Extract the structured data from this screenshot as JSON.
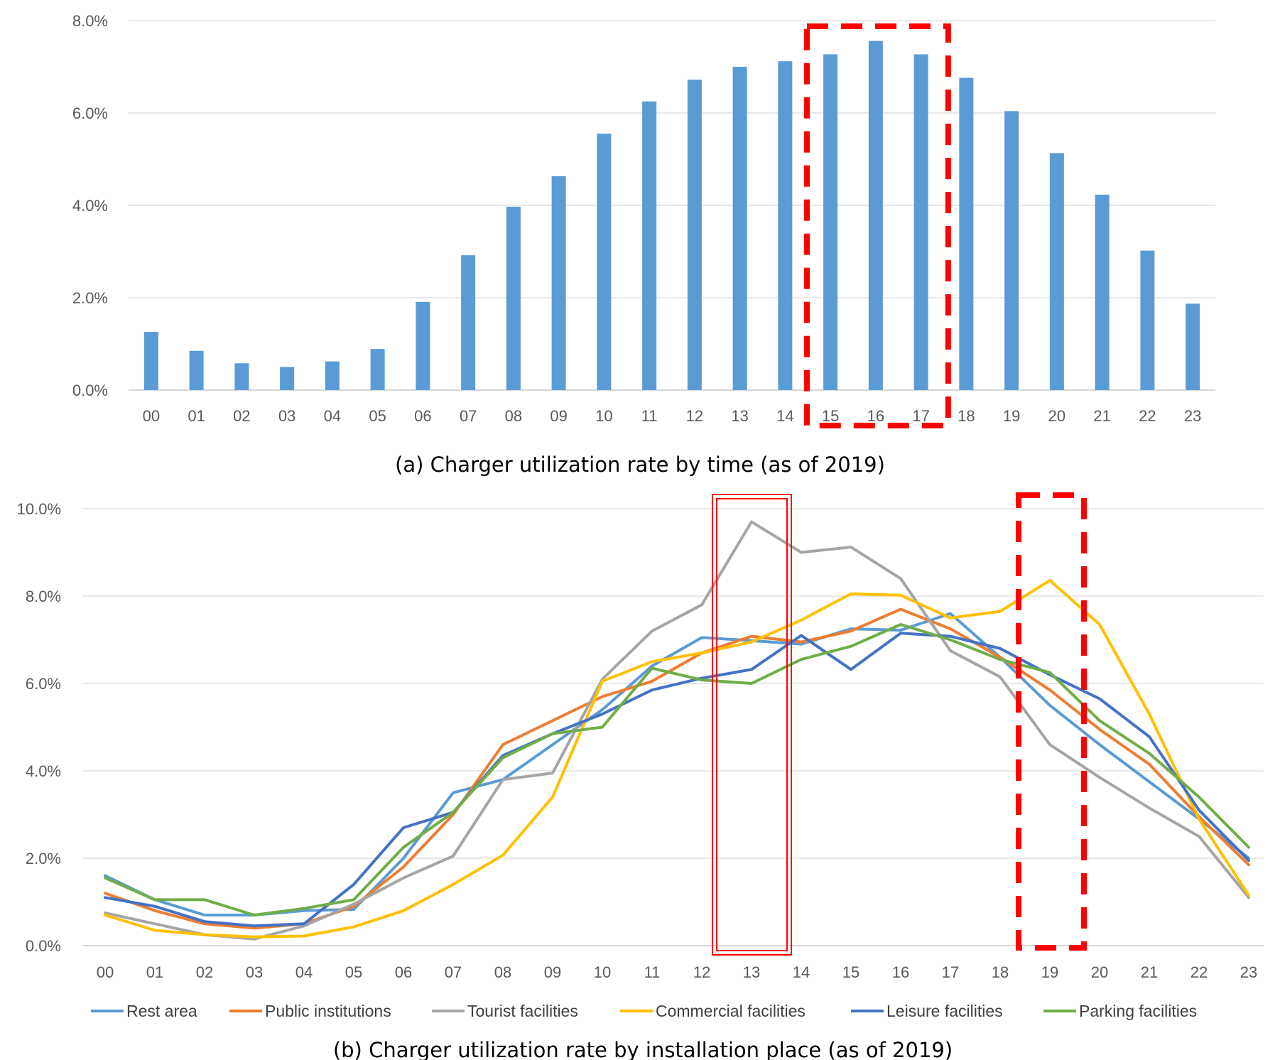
{
  "chart_data": [
    {
      "type": "bar",
      "title": "(a) Charger utilization rate by time (as of 2019)",
      "categories": [
        "00",
        "01",
        "02",
        "03",
        "04",
        "05",
        "06",
        "07",
        "08",
        "09",
        "10",
        "11",
        "12",
        "13",
        "14",
        "15",
        "16",
        "17",
        "18",
        "19",
        "20",
        "21",
        "22",
        "23"
      ],
      "values": [
        1.26,
        0.85,
        0.58,
        0.5,
        0.62,
        0.89,
        1.91,
        2.92,
        3.97,
        4.63,
        5.55,
        6.25,
        6.72,
        7.0,
        7.12,
        7.27,
        7.56,
        7.27,
        6.76,
        6.04,
        5.13,
        4.23,
        3.02,
        1.87
      ],
      "ylim": [
        0,
        8
      ],
      "yticks": [
        "0.0%",
        "2.0%",
        "4.0%",
        "6.0%",
        "8.0%"
      ],
      "grid": true,
      "bar_color": "#5B9BD5",
      "highlight": {
        "categories": [
          "15",
          "16",
          "17"
        ],
        "style": "dashed",
        "color": "#FF0000"
      }
    },
    {
      "type": "line",
      "title": "(b) Charger utilization rate by installation place (as of 2019)",
      "x": [
        "00",
        "01",
        "02",
        "03",
        "04",
        "05",
        "06",
        "07",
        "08",
        "09",
        "10",
        "11",
        "12",
        "13",
        "14",
        "15",
        "16",
        "17",
        "18",
        "19",
        "20",
        "21",
        "22",
        "23"
      ],
      "ylim": [
        0,
        10
      ],
      "yticks": [
        "0.0%",
        "2.0%",
        "4.0%",
        "6.0%",
        "8.0%",
        "10.0%"
      ],
      "grid": true,
      "legend_position": "bottom",
      "series": [
        {
          "name": "Rest area",
          "color": "#5B9BD5",
          "values": [
            1.6,
            1.05,
            0.7,
            0.7,
            0.8,
            0.83,
            2.0,
            3.5,
            3.8,
            4.6,
            5.4,
            6.4,
            7.05,
            6.98,
            6.9,
            7.25,
            7.22,
            7.6,
            6.6,
            5.5,
            4.6,
            3.75,
            2.9,
            2.0
          ]
        },
        {
          "name": "Public institutions",
          "color": "#ED7D31",
          "values": [
            1.2,
            0.8,
            0.5,
            0.4,
            0.5,
            0.9,
            1.8,
            3.0,
            4.6,
            5.15,
            5.7,
            6.05,
            6.7,
            7.08,
            6.95,
            7.2,
            7.7,
            7.25,
            6.6,
            5.85,
            4.95,
            4.15,
            2.95,
            1.85
          ]
        },
        {
          "name": "Tourist facilities",
          "color": "#A5A5A5",
          "values": [
            0.75,
            0.5,
            0.25,
            0.15,
            0.45,
            0.95,
            1.55,
            2.05,
            3.8,
            3.95,
            6.1,
            7.2,
            7.8,
            9.7,
            9.0,
            9.12,
            8.4,
            6.75,
            6.15,
            4.6,
            3.85,
            3.15,
            2.5,
            1.1
          ]
        },
        {
          "name": "Commercial facilities",
          "color": "#FFC000",
          "values": [
            0.7,
            0.35,
            0.25,
            0.2,
            0.22,
            0.43,
            0.8,
            1.4,
            2.07,
            3.4,
            6.05,
            6.5,
            6.7,
            6.95,
            7.45,
            8.05,
            8.02,
            7.5,
            7.65,
            8.36,
            7.35,
            5.3,
            2.9,
            1.15
          ]
        },
        {
          "name": "Leisure facilities",
          "color": "#4472C4",
          "values": [
            1.1,
            0.9,
            0.55,
            0.45,
            0.5,
            1.4,
            2.7,
            3.05,
            4.35,
            4.85,
            5.3,
            5.85,
            6.12,
            6.32,
            7.1,
            6.32,
            7.15,
            7.08,
            6.8,
            6.2,
            5.65,
            4.78,
            3.1,
            1.95
          ]
        },
        {
          "name": "Parking facilities",
          "color": "#70AD47",
          "values": [
            1.55,
            1.05,
            1.05,
            0.7,
            0.85,
            1.05,
            2.25,
            3.05,
            4.3,
            4.85,
            5.0,
            6.35,
            6.08,
            6.0,
            6.55,
            6.85,
            7.35,
            7.0,
            6.55,
            6.25,
            5.15,
            4.4,
            3.4,
            2.25
          ]
        }
      ],
      "highlights": [
        {
          "category": "13",
          "style": "double-solid",
          "color": "#FF0000"
        },
        {
          "category": "19",
          "style": "dashed",
          "color": "#FF0000"
        }
      ]
    }
  ]
}
